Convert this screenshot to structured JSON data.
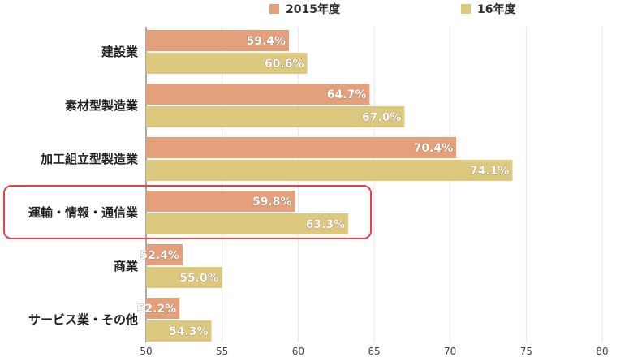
{
  "chart_data": {
    "type": "bar",
    "orientation": "horizontal",
    "categories": [
      "建設業",
      "素材型製造業",
      "加工組立型製造業",
      "運輸・情報・通信業",
      "商業",
      "サービス業・その他"
    ],
    "series": [
      {
        "name": "2015年度",
        "values": [
          59.4,
          64.7,
          70.4,
          59.8,
          52.4,
          52.2
        ],
        "labels": [
          "59.4%",
          "64.7%",
          "70.4%",
          "59.8%",
          "52.4%",
          "52.2%"
        ],
        "color": "#e4a07a"
      },
      {
        "name": "16年度",
        "values": [
          60.6,
          67.0,
          74.1,
          63.3,
          55.0,
          54.3
        ],
        "labels": [
          "60.6%",
          "67.0%",
          "74.1%",
          "63.3%",
          "55.0%",
          "54.3%"
        ],
        "color": "#dcc97e"
      }
    ],
    "xlim": [
      50,
      80
    ],
    "xticks": [
      "50",
      "55",
      "60",
      "65",
      "70",
      "75",
      "80"
    ],
    "grid": true,
    "legend_position": "top",
    "highlighted_category": "運輸・情報・通信業",
    "highlight_color": "#e8404a"
  }
}
